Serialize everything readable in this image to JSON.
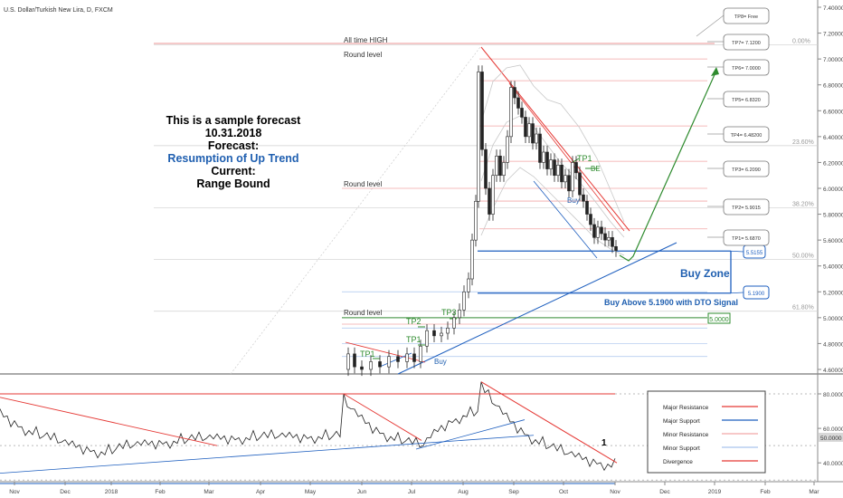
{
  "header": {
    "symbol_title": "U.S. Dollar/Turkish New Lira, D, FXCM"
  },
  "forecast": {
    "line1": "This is a sample forecast",
    "line2": "10.31.2018",
    "line3": "Forecast:",
    "line4": "Resumption of Up Trend",
    "line5": "Current:",
    "line6": "Range Bound"
  },
  "labels": {
    "all_time_high": "All time HIGH",
    "round_level": "Round level",
    "buy_zone": "Buy Zone",
    "buy_above": "Buy Above 5.1900 with DTO Signal",
    "buy": "Buy",
    "be": "BE",
    "tp1": "TP1",
    "tp2": "TP2",
    "tp3": "TP3",
    "divergence_mark": "1"
  },
  "targets": [
    {
      "label": "TP8= Free"
    },
    {
      "label": "TP7= 7.1200"
    },
    {
      "label": "TP6= 7.0000"
    },
    {
      "label": "TP5= 6.8320"
    },
    {
      "label": "TP4= 6.48200"
    },
    {
      "label": "TP3= 6.2090"
    },
    {
      "label": "TP2= 5.9015"
    },
    {
      "label": "TP1= 5.6870"
    }
  ],
  "zone_labels": {
    "upper": "5.5155",
    "lower": "5.1900",
    "level": "5.0000"
  },
  "fib_labels": [
    {
      "label": "0.00%",
      "value": 7.11
    },
    {
      "label": "23.60%",
      "value": 6.33
    },
    {
      "label": "38.20%",
      "value": 5.85
    },
    {
      "label": "50.00%",
      "value": 5.45
    },
    {
      "label": "61.80%",
      "value": 5.05
    }
  ],
  "legend": [
    {
      "label": "Major Resistance",
      "color": "#e53935"
    },
    {
      "label": "Major Support",
      "color": "#1e5fbf"
    },
    {
      "label": "Minor Resistance",
      "color": "#f2a6a6"
    },
    {
      "label": "Minor Support",
      "color": "#a9c4ee"
    },
    {
      "label": "Divergence",
      "color": "#e53935"
    }
  ],
  "colors": {
    "major_resistance": "#e53935",
    "major_support": "#1e5fbf",
    "target_arrow": "#2e8b2e",
    "forecast_blue": "#1f5fb0"
  },
  "chart_data": [
    {
      "type": "candlestick",
      "title": "U.S. Dollar/Turkish New Lira, D, FXCM",
      "x_ticks": [
        "Nov",
        "Dec",
        "2018",
        "Feb",
        "Mar",
        "Apr",
        "May",
        "Jun",
        "Jul",
        "Aug",
        "Sep",
        "Oct",
        "Nov",
        "Dec",
        "2019",
        "Feb",
        "Mar"
      ],
      "y_ticks": [
        "7.40000",
        "7.20000",
        "7.00000",
        "6.80000",
        "6.60000",
        "6.40000",
        "6.20000",
        "6.00000",
        "5.80000",
        "5.60000",
        "5.40000",
        "5.20000",
        "5.00000",
        "4.80000",
        "4.60000"
      ],
      "ylim": [
        4.55,
        7.45
      ],
      "levels": [
        {
          "name": "TP7",
          "value": 7.12
        },
        {
          "name": "TP6",
          "value": 7.0
        },
        {
          "name": "TP5",
          "value": 6.832
        },
        {
          "name": "TP4",
          "value": 6.482
        },
        {
          "name": "TP3",
          "value": 6.209
        },
        {
          "name": "TP2",
          "value": 5.9015
        },
        {
          "name": "TP1",
          "value": 5.687
        },
        {
          "name": "Buy zone top",
          "value": 5.5155
        },
        {
          "name": "Buy zone bottom",
          "value": 5.19
        },
        {
          "name": "Level",
          "value": 5.0
        }
      ],
      "grid": true
    },
    {
      "type": "line",
      "title": "Oscillator",
      "y_ticks": [
        "80.0000",
        "60.0000",
        "50.0000",
        "40.0000"
      ],
      "ylim": [
        26,
        90
      ],
      "highlighted_value": "50.0000",
      "grid": true
    }
  ]
}
